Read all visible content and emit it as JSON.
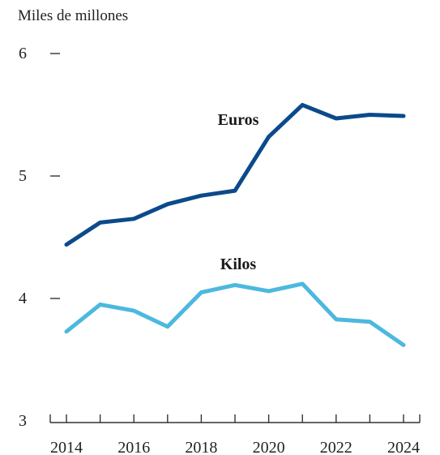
{
  "chart_data": {
    "type": "line",
    "unit_label": "Miles de millones",
    "x": [
      2014,
      2015,
      2016,
      2017,
      2018,
      2019,
      2020,
      2021,
      2022,
      2023,
      2024
    ],
    "x_tick_labels": [
      "2014",
      "2016",
      "2018",
      "2020",
      "2022",
      "2024"
    ],
    "y_tick_labels": [
      "6",
      "5",
      "4",
      "3"
    ],
    "ylim": [
      3,
      6
    ],
    "grid": false,
    "series": [
      {
        "name": "Euros",
        "color": "#0b4a8b",
        "values": [
          4.44,
          4.62,
          4.65,
          4.77,
          4.84,
          4.88,
          5.32,
          5.58,
          5.47,
          5.5,
          5.49
        ]
      },
      {
        "name": "Kilos",
        "color": "#4db8df",
        "values": [
          3.73,
          3.95,
          3.9,
          3.77,
          4.05,
          4.11,
          4.06,
          4.12,
          3.83,
          3.81,
          3.62
        ]
      }
    ]
  }
}
